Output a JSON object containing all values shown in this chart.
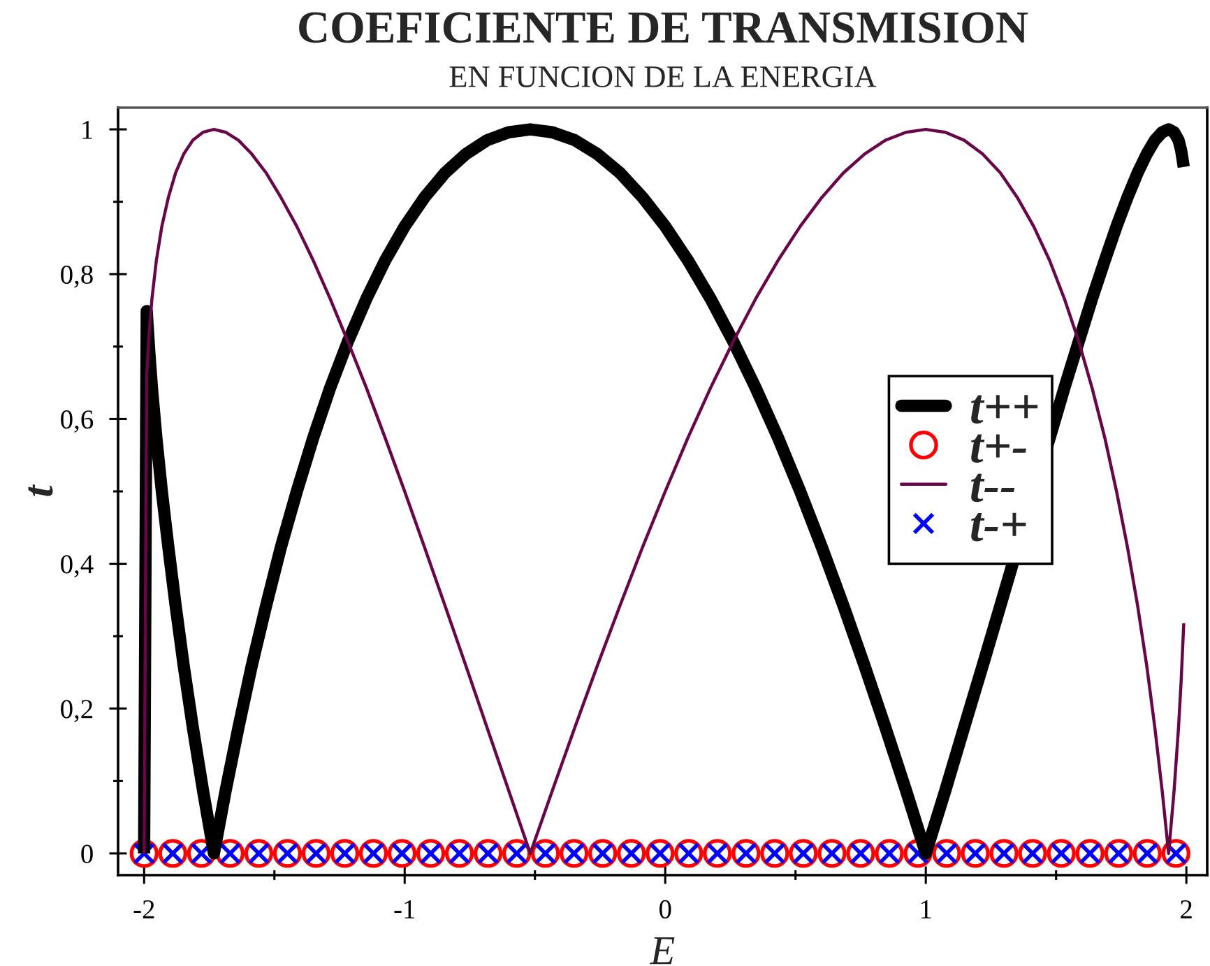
{
  "chart_data": {
    "type": "line",
    "title": "COEFICIENTE DE TRANSMISION",
    "subtitle": "EN FUNCION DE LA ENERGIA",
    "xlabel": "E",
    "ylabel": "t",
    "xlim": [
      -2.1,
      2.08
    ],
    "ylim": [
      -0.03,
      1.03
    ],
    "xticks": [
      -2,
      {
        "value": -1.5,
        "label": null
      },
      -1,
      {
        "value": -0.5,
        "label": null
      },
      0,
      {
        "value": 0.5,
        "label": null
      },
      1,
      {
        "value": 1.5,
        "label": null
      },
      2
    ],
    "yticks": [
      0,
      {
        "value": 0.1,
        "label": null
      },
      {
        "value": 0.2,
        "label": "0,2"
      },
      {
        "value": 0.3,
        "label": null
      },
      {
        "value": 0.4,
        "label": "0,4"
      },
      {
        "value": 0.5,
        "label": null
      },
      {
        "value": 0.6,
        "label": "0,6"
      },
      {
        "value": 0.7,
        "label": null
      },
      {
        "value": 0.8,
        "label": "0,8"
      },
      {
        "value": 0.9,
        "label": null
      },
      1
    ],
    "legend": "right",
    "series": [
      {
        "name": "t++",
        "color": "#000000",
        "x": [
          -2,
          -1.99,
          -1.98,
          -1.97,
          -1.953,
          -1.932,
          -1.907,
          -1.879,
          -1.848,
          -1.813,
          -1.774,
          -1.732,
          -1.687,
          -1.638,
          -1.587,
          -1.532,
          -1.475,
          -1.414,
          -1.351,
          -1.286,
          -1.218,
          -1.147,
          -1.075,
          -1,
          -0.924,
          -0.845,
          -0.765,
          -0.684,
          -0.601,
          -0.518,
          -0.433,
          -0.347,
          -0.261,
          -0.174,
          -0.087,
          0,
          0.087,
          0.174,
          0.261,
          0.347,
          0.433,
          0.518,
          0.601,
          0.684,
          0.765,
          0.845,
          0.924,
          1,
          1.075,
          1.147,
          1.218,
          1.286,
          1.532,
          1.587,
          1.638,
          1.687,
          1.732,
          1.774,
          1.813,
          1.848,
          1.879,
          1.907,
          1.932,
          1.953,
          1.97,
          1.98,
          1.99
        ],
        "values": [
          0,
          0.749,
          0.692,
          0.643,
          0.574,
          0.5,
          0.423,
          0.342,
          0.259,
          0.174,
          0.087,
          0,
          0.087,
          0.174,
          0.259,
          0.342,
          0.423,
          0.5,
          0.574,
          0.643,
          0.707,
          0.766,
          0.819,
          0.866,
          0.906,
          0.94,
          0.966,
          0.985,
          0.996,
          1,
          0.996,
          0.985,
          0.966,
          0.94,
          0.906,
          0.866,
          0.819,
          0.766,
          0.707,
          0.643,
          0.574,
          0.5,
          0.423,
          0.342,
          0.259,
          0.174,
          0.087,
          0,
          0.087,
          0.174,
          0.259,
          0.342,
          0.643,
          0.707,
          0.766,
          0.819,
          0.866,
          0.906,
          0.94,
          0.966,
          0.985,
          0.996,
          1,
          0.996,
          0.985,
          0.971,
          0.948
        ]
      },
      {
        "name": "t+-",
        "type": "scatter",
        "marker": "circle",
        "color": "#ff0000",
        "x": [
          -2,
          -1.89,
          -1.78,
          -1.67,
          -1.56,
          -1.45,
          -1.34,
          -1.23,
          -1.12,
          -1.01,
          -0.9,
          -0.79,
          -0.68,
          -0.57,
          -0.46,
          -0.35,
          -0.24,
          -0.13,
          -0.02,
          0.09,
          0.2,
          0.31,
          0.42,
          0.53,
          0.64,
          0.75,
          0.86,
          0.97,
          1.08,
          1.19,
          1.3,
          1.41,
          1.52,
          1.63,
          1.74,
          1.85,
          1.96
        ],
        "values": [
          0,
          0,
          0,
          0,
          0,
          0,
          0,
          0,
          0,
          0,
          0,
          0,
          0,
          0,
          0,
          0,
          0,
          0,
          0,
          0,
          0,
          0,
          0,
          0,
          0,
          0,
          0,
          0,
          0,
          0,
          0,
          0,
          0,
          0,
          0,
          0,
          0
        ]
      },
      {
        "name": "t--",
        "color": "#670748",
        "x": [
          -2,
          -1.99,
          -1.98,
          -1.97,
          -1.953,
          -1.932,
          -1.907,
          -1.879,
          -1.848,
          -1.813,
          -1.774,
          -1.732,
          -1.687,
          -1.638,
          -1.587,
          -1.532,
          -1.475,
          -1.414,
          -1.351,
          -1.286,
          -1.218,
          -1.147,
          -1.075,
          -1,
          -0.924,
          -0.845,
          -0.765,
          -0.684,
          -0.601,
          -0.518,
          -0.433,
          -0.347,
          -0.261,
          -0.174,
          -0.087,
          0,
          0.087,
          0.174,
          0.261,
          0.347,
          0.433,
          0.518,
          0.601,
          0.684,
          0.765,
          0.845,
          0.924,
          1,
          1.075,
          1.147,
          1.218,
          1.286,
          1.351,
          1.414,
          1.475,
          1.532,
          1.587,
          1.638,
          1.687,
          1.732,
          1.774,
          1.813,
          1.848,
          1.879,
          1.907,
          1.932,
          1.953,
          1.97,
          1.98,
          1.99
        ],
        "values": [
          0,
          0.662,
          0.722,
          0.766,
          0.819,
          0.866,
          0.906,
          0.94,
          0.966,
          0.985,
          0.996,
          1,
          0.996,
          0.985,
          0.966,
          0.94,
          0.906,
          0.866,
          0.819,
          0.766,
          0.707,
          0.643,
          0.574,
          0.5,
          0.423,
          0.342,
          0.259,
          0.174,
          0.087,
          0,
          0.087,
          0.174,
          0.259,
          0.342,
          0.423,
          0.5,
          0.574,
          0.643,
          0.707,
          0.766,
          0.819,
          0.866,
          0.906,
          0.94,
          0.966,
          0.985,
          0.996,
          1,
          0.996,
          0.985,
          0.966,
          0.94,
          0.906,
          0.866,
          0.819,
          0.766,
          0.707,
          0.643,
          0.574,
          0.5,
          0.423,
          0.342,
          0.259,
          0.174,
          0.087,
          0,
          0.087,
          0.174,
          0.238,
          0.318
        ]
      },
      {
        "name": "t-+",
        "type": "scatter",
        "marker": "cross",
        "color": "#0000ff",
        "x": [
          -2,
          -1.89,
          -1.78,
          -1.67,
          -1.56,
          -1.45,
          -1.34,
          -1.23,
          -1.12,
          -1.01,
          -0.9,
          -0.79,
          -0.68,
          -0.57,
          -0.46,
          -0.35,
          -0.24,
          -0.13,
          -0.02,
          0.09,
          0.2,
          0.31,
          0.42,
          0.53,
          0.64,
          0.75,
          0.86,
          0.97,
          1.08,
          1.19,
          1.3,
          1.41,
          1.52,
          1.63,
          1.74,
          1.85,
          1.96
        ],
        "values": [
          0,
          0,
          0,
          0,
          0,
          0,
          0,
          0,
          0,
          0,
          0,
          0,
          0,
          0,
          0,
          0,
          0,
          0,
          0,
          0,
          0,
          0,
          0,
          0,
          0,
          0,
          0,
          0,
          0,
          0,
          0,
          0,
          0,
          0,
          0,
          0,
          0
        ]
      }
    ]
  }
}
